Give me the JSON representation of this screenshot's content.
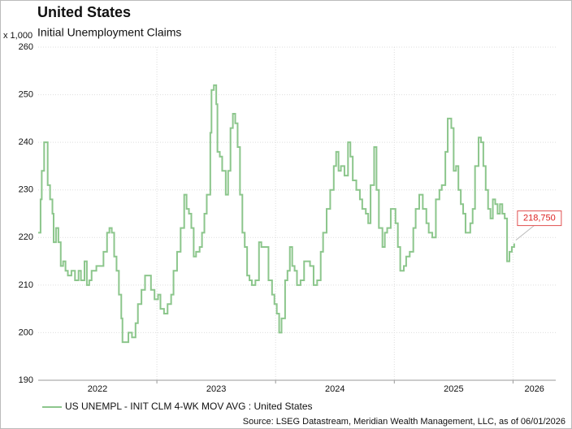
{
  "chart_data": {
    "type": "line",
    "title": "United States",
    "subtitle": "Initial Unemployment Claims",
    "y_unit_label": "x 1,000",
    "source": "Source: LSEG Datastream, Meridian Wealth Management, LLC, as of 06/01/2026",
    "callout": "218,750",
    "step": true,
    "grid": true,
    "legend": "bottom-left",
    "xlim": [
      2022,
      2026.36
    ],
    "xticks": [
      2022,
      2023,
      2024,
      2025,
      2026
    ],
    "ylim": [
      190,
      260
    ],
    "yticks": [
      190,
      200,
      210,
      220,
      230,
      240,
      250,
      260
    ],
    "x": [
      2022.0,
      2022.02,
      2022.03,
      2022.05,
      2022.07,
      2022.08,
      2022.1,
      2022.12,
      2022.13,
      2022.15,
      2022.17,
      2022.19,
      2022.21,
      2022.23,
      2022.25,
      2022.28,
      2022.31,
      2022.34,
      2022.36,
      2022.39,
      2022.41,
      2022.43,
      2022.45,
      2022.49,
      2022.53,
      2022.55,
      2022.58,
      2022.6,
      2022.62,
      2022.64,
      2022.66,
      2022.68,
      2022.7,
      2022.71,
      2022.74,
      2022.76,
      2022.79,
      2022.82,
      2022.84,
      2022.87,
      2022.9,
      2022.92,
      2022.95,
      2022.98,
      2023.01,
      2023.03,
      2023.06,
      2023.09,
      2023.12,
      2023.14,
      2023.17,
      2023.2,
      2023.23,
      2023.25,
      2023.27,
      2023.29,
      2023.31,
      2023.33,
      2023.36,
      2023.38,
      2023.4,
      2023.42,
      2023.45,
      2023.46,
      2023.48,
      2023.5,
      2023.51,
      2023.53,
      2023.55,
      2023.58,
      2023.6,
      2023.62,
      2023.64,
      2023.66,
      2023.68,
      2023.7,
      2023.72,
      2023.74,
      2023.76,
      2023.78,
      2023.8,
      2023.83,
      2023.86,
      2023.88,
      2023.91,
      2023.94,
      2023.97,
      2023.99,
      2024.01,
      2024.03,
      2024.05,
      2024.08,
      2024.1,
      2024.12,
      2024.14,
      2024.16,
      2024.18,
      2024.21,
      2024.24,
      2024.27,
      2024.29,
      2024.32,
      2024.35,
      2024.38,
      2024.4,
      2024.43,
      2024.46,
      2024.49,
      2024.51,
      2024.53,
      2024.55,
      2024.58,
      2024.61,
      2024.63,
      2024.65,
      2024.68,
      2024.71,
      2024.73,
      2024.76,
      2024.78,
      2024.8,
      2024.83,
      2024.85,
      2024.87,
      2024.9,
      2024.92,
      2024.94,
      2024.97,
      2024.99,
      2025.01,
      2025.03,
      2025.05,
      2025.08,
      2025.1,
      2025.13,
      2025.16,
      2025.18,
      2025.21,
      2025.24,
      2025.27,
      2025.29,
      2025.32,
      2025.35,
      2025.38,
      2025.4,
      2025.43,
      2025.45,
      2025.48,
      2025.5,
      2025.52,
      2025.54,
      2025.56,
      2025.58,
      2025.6,
      2025.62,
      2025.64,
      2025.66,
      2025.68,
      2025.71,
      2025.73,
      2025.75,
      2025.77,
      2025.79,
      2025.81,
      2025.83,
      2025.85,
      2025.87,
      2025.89,
      2025.91,
      2025.93,
      2025.95,
      2025.97,
      2025.99,
      2026.01
    ],
    "series": [
      {
        "name": "US UNEMPL - INIT CLM 4-WK MOV AVG : United States",
        "color": "#8cc68c",
        "values": [
          221,
          228,
          234,
          240,
          240,
          231,
          228,
          225,
          219,
          222,
          219,
          214,
          215,
          213,
          212,
          213,
          211,
          213,
          211,
          215,
          210,
          211,
          213,
          214,
          214,
          217,
          221,
          222,
          221,
          216,
          213,
          208,
          203,
          198,
          198,
          200,
          199,
          202,
          206,
          209,
          212,
          212,
          209,
          207,
          208,
          205,
          204,
          206,
          208,
          213,
          217,
          222,
          229,
          226,
          225,
          222,
          216,
          217,
          218,
          221,
          225,
          229,
          242,
          251,
          252,
          248,
          238,
          237,
          234,
          229,
          234,
          243,
          246,
          244,
          239,
          229,
          221,
          218,
          212,
          211,
          210,
          211,
          219,
          218,
          218,
          211,
          208,
          206,
          204,
          200,
          203,
          211,
          213,
          218,
          214,
          213,
          210,
          211,
          215,
          215,
          214,
          210,
          211,
          217,
          221,
          226,
          230,
          235,
          238,
          234,
          235,
          233,
          240,
          237,
          232,
          230,
          228,
          226,
          225,
          223,
          231,
          239,
          230,
          222,
          218,
          221,
          222,
          226,
          226,
          223,
          218,
          213,
          214,
          216,
          217,
          222,
          226,
          229,
          226,
          223,
          221,
          220,
          228,
          230,
          231,
          238,
          245,
          243,
          234,
          235,
          230,
          227,
          225,
          221,
          221,
          223,
          226,
          235,
          241,
          240,
          235,
          230,
          226,
          224,
          228,
          227,
          225,
          227,
          225,
          224,
          215,
          217,
          218,
          218.75
        ]
      }
    ]
  }
}
